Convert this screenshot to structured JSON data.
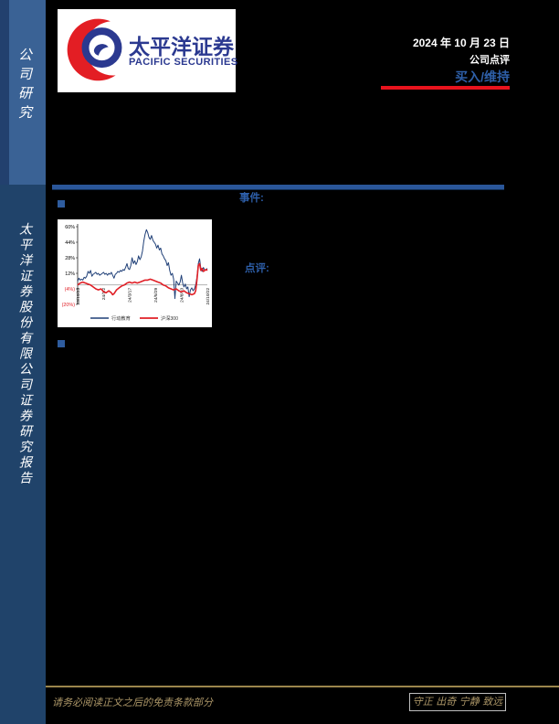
{
  "sidebar": {
    "top_label": "公司研究",
    "bottom_label": "太平洋证券股份有限公司证券研究报告"
  },
  "logo": {
    "name_cn": "太平洋证券",
    "name_en": "PACIFIC  SECURITIES"
  },
  "header": {
    "date": "2024 年 10 月 23 日",
    "report_type": "公司点评",
    "rating": "买入/维持"
  },
  "sections": {
    "event_label": "事件:",
    "comment_label": "点评:"
  },
  "footer": {
    "disclaimer": "请务必阅读正文之后的免责条款部分",
    "motto": "守正 出奇 宁静 致远"
  },
  "colors": {
    "accent_blue": "#2D5EA8",
    "rating_blue": "#2E5FA8",
    "red_rule": "#E8131D",
    "divider_blue": "#2A5699",
    "sidebar_top": "#3A6295",
    "sidebar_bottom": "#20436A",
    "gold": "#AD9768",
    "logo_blue": "#2B3990",
    "logo_red": "#E31E24"
  },
  "chart_data": {
    "type": "line",
    "title": "",
    "xlabel": "",
    "ylabel": "",
    "ylim": [
      -20,
      60
    ],
    "grid": false,
    "legend_position": "bottom",
    "yticks": [
      {
        "label": "60%",
        "value": 60,
        "color": "#000000"
      },
      {
        "label": "44%",
        "value": 44,
        "color": "#000000"
      },
      {
        "label": "28%",
        "value": 28,
        "color": "#000000"
      },
      {
        "label": "12%",
        "value": 12,
        "color": "#000000"
      },
      {
        "label": "(4%)",
        "value": -4,
        "color": "#E01F26"
      },
      {
        "label": "(20%)",
        "value": -20,
        "color": "#E01F26"
      }
    ],
    "xticks": [
      {
        "label": "23/10/23",
        "x": 0.0
      },
      {
        "label": "24/1/2",
        "x": 0.2
      },
      {
        "label": "24/3/17",
        "x": 0.4
      },
      {
        "label": "24/5/29",
        "x": 0.6
      },
      {
        "label": "24/8/10",
        "x": 0.8
      },
      {
        "label": "24/10/22",
        "x": 1.0
      }
    ],
    "series": [
      {
        "name": "行动教育",
        "color": "#1F3F77",
        "width": 1.0,
        "points": [
          [
            0,
            4
          ],
          [
            0.01,
            7
          ],
          [
            0.02,
            5
          ],
          [
            0.03,
            6
          ],
          [
            0.04,
            5
          ],
          [
            0.05,
            8
          ],
          [
            0.06,
            7
          ],
          [
            0.07,
            9
          ],
          [
            0.08,
            14
          ],
          [
            0.09,
            12
          ],
          [
            0.1,
            15
          ],
          [
            0.11,
            9
          ],
          [
            0.12,
            11
          ],
          [
            0.13,
            12
          ],
          [
            0.14,
            13
          ],
          [
            0.15,
            11
          ],
          [
            0.16,
            12
          ],
          [
            0.17,
            10
          ],
          [
            0.18,
            11
          ],
          [
            0.19,
            12
          ],
          [
            0.2,
            13
          ],
          [
            0.21,
            11
          ],
          [
            0.22,
            12
          ],
          [
            0.23,
            10
          ],
          [
            0.24,
            12
          ],
          [
            0.25,
            11
          ],
          [
            0.26,
            13
          ],
          [
            0.27,
            10
          ],
          [
            0.28,
            7
          ],
          [
            0.29,
            11
          ],
          [
            0.3,
            12
          ],
          [
            0.31,
            14
          ],
          [
            0.32,
            13
          ],
          [
            0.33,
            15
          ],
          [
            0.34,
            14
          ],
          [
            0.35,
            16
          ],
          [
            0.36,
            15
          ],
          [
            0.37,
            18
          ],
          [
            0.38,
            22
          ],
          [
            0.39,
            17
          ],
          [
            0.4,
            16
          ],
          [
            0.41,
            20
          ],
          [
            0.42,
            28
          ],
          [
            0.43,
            22
          ],
          [
            0.44,
            25
          ],
          [
            0.45,
            21
          ],
          [
            0.46,
            24
          ],
          [
            0.47,
            30
          ],
          [
            0.48,
            26
          ],
          [
            0.49,
            29
          ],
          [
            0.5,
            35
          ],
          [
            0.51,
            45
          ],
          [
            0.52,
            52
          ],
          [
            0.53,
            57
          ],
          [
            0.54,
            54
          ],
          [
            0.55,
            49
          ],
          [
            0.56,
            47
          ],
          [
            0.57,
            51
          ],
          [
            0.58,
            46
          ],
          [
            0.59,
            44
          ],
          [
            0.6,
            42
          ],
          [
            0.61,
            38
          ],
          [
            0.62,
            41
          ],
          [
            0.63,
            36
          ],
          [
            0.64,
            38
          ],
          [
            0.65,
            32
          ],
          [
            0.66,
            30
          ],
          [
            0.67,
            27
          ],
          [
            0.68,
            25
          ],
          [
            0.69,
            20
          ],
          [
            0.7,
            23
          ],
          [
            0.71,
            15
          ],
          [
            0.72,
            10
          ],
          [
            0.73,
            12
          ],
          [
            0.74,
            6
          ],
          [
            0.75,
            -14
          ],
          [
            0.76,
            4
          ],
          [
            0.77,
            2
          ],
          [
            0.78,
            0
          ],
          [
            0.79,
            3
          ],
          [
            0.8,
            10
          ],
          [
            0.81,
            2
          ],
          [
            0.82,
            -2
          ],
          [
            0.83,
            1
          ],
          [
            0.84,
            -4
          ],
          [
            0.85,
            -2
          ],
          [
            0.86,
            -12
          ],
          [
            0.87,
            -5
          ],
          [
            0.88,
            -3
          ],
          [
            0.89,
            -6
          ],
          [
            0.9,
            -4
          ],
          [
            0.91,
            0
          ],
          [
            0.92,
            8
          ],
          [
            0.93,
            22
          ],
          [
            0.94,
            27
          ],
          [
            0.95,
            17
          ],
          [
            0.96,
            14
          ],
          [
            0.97,
            18
          ],
          [
            0.98,
            15
          ],
          [
            0.99,
            16
          ],
          [
            1,
            17
          ]
        ]
      },
      {
        "name": "沪深300",
        "color": "#E01F26",
        "width": 1.6,
        "points": [
          [
            0,
            0
          ],
          [
            0.02,
            2
          ],
          [
            0.04,
            3
          ],
          [
            0.06,
            2
          ],
          [
            0.08,
            1
          ],
          [
            0.1,
            0
          ],
          [
            0.12,
            -2
          ],
          [
            0.14,
            -4
          ],
          [
            0.16,
            -5
          ],
          [
            0.18,
            -4
          ],
          [
            0.2,
            -7
          ],
          [
            0.22,
            -8
          ],
          [
            0.24,
            -6
          ],
          [
            0.26,
            -8
          ],
          [
            0.27,
            -10
          ],
          [
            0.28,
            -9
          ],
          [
            0.3,
            -5
          ],
          [
            0.32,
            -3
          ],
          [
            0.34,
            -1
          ],
          [
            0.36,
            0
          ],
          [
            0.38,
            2
          ],
          [
            0.4,
            3
          ],
          [
            0.42,
            2
          ],
          [
            0.44,
            3
          ],
          [
            0.46,
            2
          ],
          [
            0.48,
            3
          ],
          [
            0.5,
            4
          ],
          [
            0.52,
            5
          ],
          [
            0.54,
            5
          ],
          [
            0.56,
            6
          ],
          [
            0.58,
            5
          ],
          [
            0.6,
            4
          ],
          [
            0.62,
            3
          ],
          [
            0.64,
            2
          ],
          [
            0.66,
            0
          ],
          [
            0.68,
            -1
          ],
          [
            0.7,
            -3
          ],
          [
            0.72,
            -4
          ],
          [
            0.74,
            -5
          ],
          [
            0.76,
            -4
          ],
          [
            0.78,
            -6
          ],
          [
            0.8,
            -7
          ],
          [
            0.82,
            -6
          ],
          [
            0.84,
            -8
          ],
          [
            0.86,
            -9
          ],
          [
            0.88,
            -10
          ],
          [
            0.9,
            -9
          ],
          [
            0.91,
            -6
          ],
          [
            0.92,
            5
          ],
          [
            0.93,
            20
          ],
          [
            0.94,
            22
          ],
          [
            0.95,
            15
          ],
          [
            0.96,
            17
          ],
          [
            0.97,
            14
          ],
          [
            0.98,
            15
          ],
          [
            0.99,
            16
          ],
          [
            1,
            15
          ]
        ]
      }
    ]
  }
}
